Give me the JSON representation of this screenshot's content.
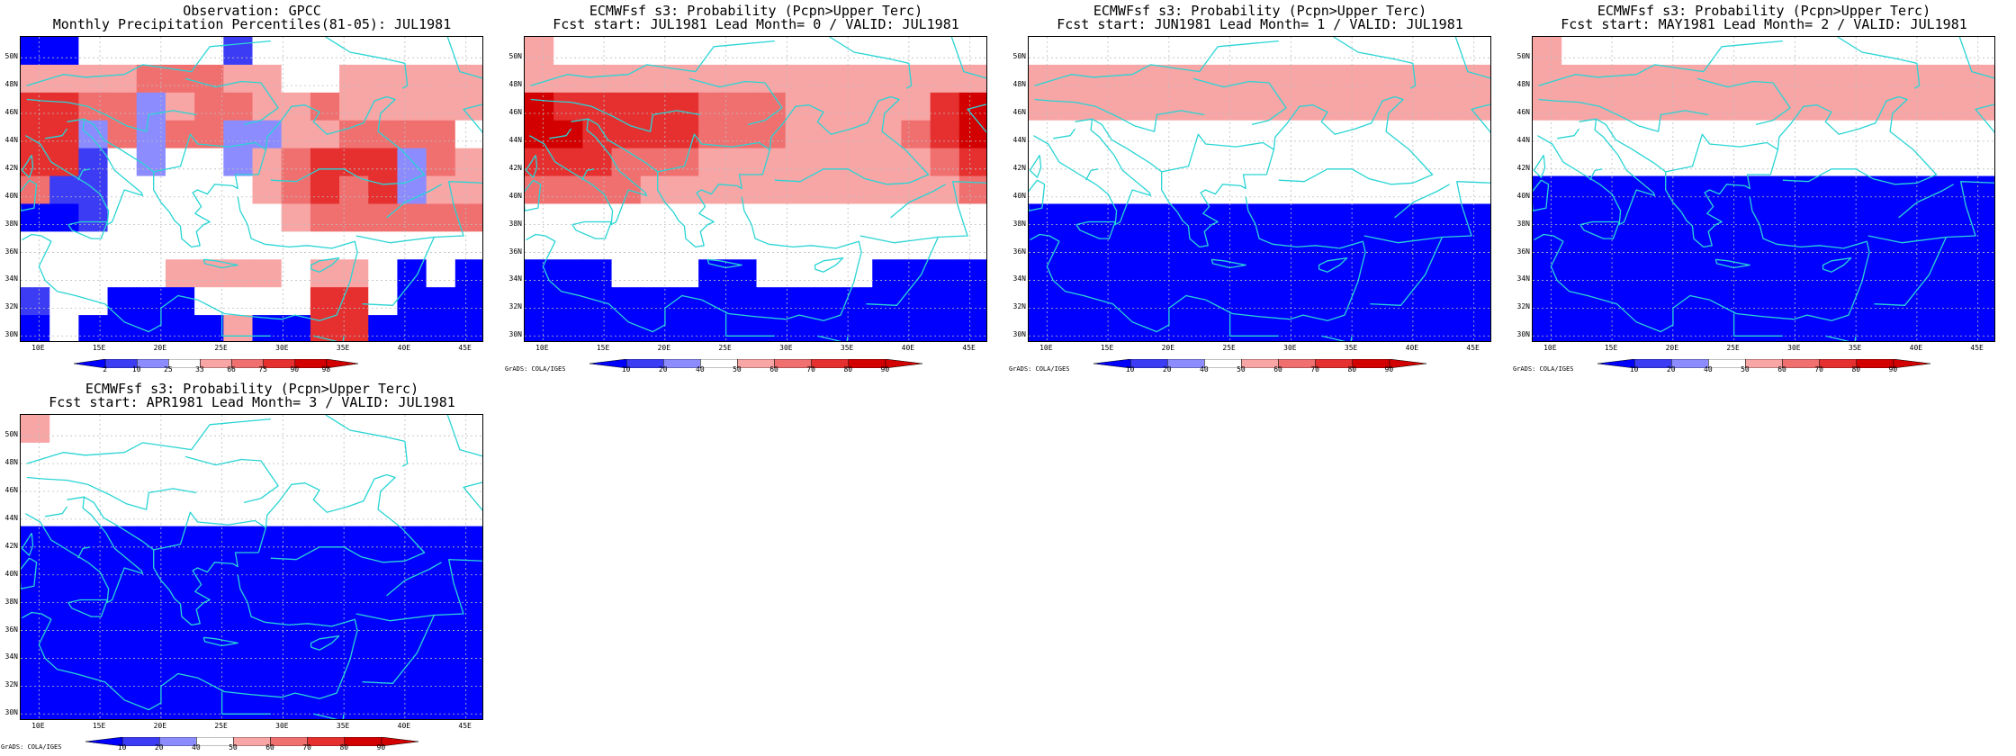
{
  "lat_labels": [
    "30N",
    "32N",
    "34N",
    "36N",
    "38N",
    "40N",
    "42N",
    "44N",
    "46N",
    "48N",
    "50N"
  ],
  "lon_labels": [
    "10E",
    "15E",
    "20E",
    "25E",
    "30E",
    "35E",
    "40E",
    "45E"
  ],
  "grads_credit": "GrADS: COLA/IGES",
  "colors": {
    "coast": "#2ad4d4",
    "grid": "#bdbdbd",
    "classes": [
      "#0000ff",
      "#3c3cf5",
      "#8c8cff",
      "#ffffff",
      "#f8a5a5",
      "#f07070",
      "#e63030",
      "#d20000"
    ]
  },
  "obs_colorbar": {
    "ticks": [
      "2",
      "10",
      "25",
      "33",
      "66",
      "75",
      "90",
      "98"
    ],
    "colors": [
      "#0000ff",
      "#3c3cf5",
      "#8c8cff",
      "#ffffff",
      "#f8a5a5",
      "#f07070",
      "#e63030",
      "#d20000"
    ]
  },
  "prob_colorbar": {
    "ticks": [
      "10",
      "20",
      "40",
      "50",
      "60",
      "70",
      "80",
      "90"
    ],
    "colors": [
      "#0000ff",
      "#3c3cf5",
      "#8c8cff",
      "#ffffff",
      "#f8a5a5",
      "#f07070",
      "#e63030",
      "#d20000"
    ]
  },
  "panels": [
    {
      "title1": "Observation: GPCC",
      "title2": "Monthly Precipitation Percentiles(81-05): JUL1981",
      "show_credit": false,
      "colorbar": "obs",
      "grid_values": [
        [
          0,
          0,
          3,
          3,
          3,
          3,
          3,
          1,
          3,
          3,
          3,
          3,
          3,
          3,
          3,
          3
        ],
        [
          4,
          4,
          4,
          4,
          5,
          5,
          5,
          4,
          4,
          3,
          3,
          4,
          4,
          4,
          4,
          4
        ],
        [
          6,
          6,
          5,
          5,
          2,
          4,
          5,
          5,
          4,
          4,
          5,
          4,
          4,
          4,
          4,
          4
        ],
        [
          6,
          6,
          2,
          5,
          2,
          5,
          5,
          2,
          2,
          4,
          4,
          5,
          5,
          5,
          5,
          3
        ],
        [
          6,
          6,
          1,
          3,
          2,
          3,
          3,
          2,
          4,
          5,
          6,
          6,
          6,
          2,
          5,
          4
        ],
        [
          5,
          1,
          1,
          3,
          3,
          3,
          3,
          3,
          4,
          5,
          6,
          5,
          6,
          2,
          4,
          4
        ],
        [
          0,
          0,
          1,
          3,
          3,
          3,
          3,
          3,
          3,
          4,
          5,
          5,
          5,
          5,
          5,
          5
        ],
        [
          3,
          3,
          3,
          3,
          3,
          3,
          3,
          3,
          3,
          3,
          3,
          3,
          3,
          3,
          3,
          3
        ],
        [
          3,
          3,
          3,
          3,
          3,
          4,
          4,
          4,
          4,
          3,
          4,
          4,
          3,
          0,
          3,
          0
        ],
        [
          1,
          3,
          3,
          0,
          0,
          0,
          3,
          3,
          3,
          3,
          6,
          6,
          3,
          0,
          0,
          0
        ],
        [
          0,
          3,
          0,
          0,
          0,
          0,
          0,
          4,
          0,
          0,
          6,
          6,
          0,
          0,
          0,
          0
        ]
      ]
    },
    {
      "title1": "ECMWFsf s3: Probability (Pcpn>Upper Terc)",
      "title2": "Fcst start: JUL1981   Lead Month= 0 / VALID: JUL1981",
      "show_credit": true,
      "colorbar": "prob",
      "grid_values": [
        [
          4,
          3,
          3,
          3,
          3,
          3,
          3,
          3,
          3,
          3,
          3,
          3,
          3,
          3,
          3,
          3
        ],
        [
          4,
          4,
          4,
          4,
          4,
          4,
          4,
          4,
          4,
          4,
          4,
          4,
          4,
          4,
          4,
          4
        ],
        [
          7,
          6,
          6,
          6,
          6,
          6,
          5,
          5,
          5,
          4,
          4,
          4,
          4,
          4,
          6,
          7
        ],
        [
          7,
          7,
          6,
          6,
          6,
          6,
          5,
          5,
          5,
          4,
          4,
          4,
          4,
          5,
          6,
          7
        ],
        [
          6,
          6,
          6,
          5,
          5,
          5,
          4,
          4,
          4,
          4,
          4,
          4,
          4,
          4,
          5,
          6
        ],
        [
          5,
          5,
          5,
          5,
          4,
          4,
          4,
          4,
          4,
          4,
          4,
          4,
          4,
          4,
          4,
          5
        ],
        [
          3,
          3,
          3,
          3,
          3,
          3,
          3,
          3,
          3,
          3,
          3,
          3,
          3,
          3,
          3,
          3
        ],
        [
          3,
          3,
          3,
          3,
          3,
          3,
          3,
          3,
          3,
          3,
          3,
          3,
          3,
          3,
          3,
          3
        ],
        [
          0,
          0,
          0,
          3,
          3,
          3,
          0,
          0,
          3,
          3,
          3,
          3,
          0,
          0,
          0,
          0
        ],
        [
          0,
          0,
          0,
          0,
          0,
          0,
          0,
          0,
          0,
          0,
          0,
          0,
          0,
          0,
          0,
          0
        ],
        [
          0,
          0,
          0,
          0,
          0,
          0,
          0,
          0,
          0,
          0,
          0,
          0,
          0,
          0,
          0,
          0
        ]
      ]
    },
    {
      "title1": "ECMWFsf s3: Probability (Pcpn>Upper Terc)",
      "title2": "Fcst start: JUN1981   Lead Month= 1 / VALID: JUL1981",
      "show_credit": true,
      "colorbar": "prob",
      "grid_values": [
        [
          3,
          3,
          3,
          3,
          3,
          3,
          3,
          3,
          3,
          3,
          3,
          3,
          3,
          3,
          3,
          3
        ],
        [
          4,
          4,
          4,
          4,
          4,
          4,
          4,
          4,
          4,
          4,
          4,
          4,
          4,
          4,
          4,
          4
        ],
        [
          4,
          4,
          4,
          4,
          4,
          4,
          4,
          4,
          4,
          4,
          4,
          4,
          4,
          4,
          4,
          4
        ],
        [
          3,
          3,
          3,
          3,
          3,
          3,
          3,
          3,
          3,
          3,
          3,
          3,
          3,
          3,
          3,
          3
        ],
        [
          3,
          3,
          3,
          3,
          3,
          3,
          3,
          3,
          3,
          3,
          3,
          3,
          3,
          3,
          3,
          3
        ],
        [
          3,
          3,
          3,
          3,
          3,
          3,
          3,
          3,
          3,
          3,
          3,
          3,
          3,
          3,
          3,
          3
        ],
        [
          0,
          0,
          0,
          0,
          0,
          0,
          0,
          0,
          0,
          0,
          0,
          0,
          0,
          0,
          0,
          0
        ],
        [
          0,
          0,
          0,
          0,
          0,
          0,
          0,
          0,
          0,
          0,
          0,
          0,
          0,
          0,
          0,
          0
        ],
        [
          0,
          0,
          0,
          0,
          0,
          0,
          0,
          0,
          0,
          0,
          0,
          0,
          0,
          0,
          0,
          0
        ],
        [
          0,
          0,
          0,
          0,
          0,
          0,
          0,
          0,
          0,
          0,
          0,
          0,
          0,
          0,
          0,
          0
        ],
        [
          0,
          0,
          0,
          0,
          0,
          0,
          0,
          0,
          0,
          0,
          0,
          0,
          0,
          0,
          0,
          0
        ]
      ]
    },
    {
      "title1": "ECMWFsf s3: Probability (Pcpn>Upper Terc)",
      "title2": "Fcst start: MAY1981   Lead Month= 2 / VALID: JUL1981",
      "show_credit": true,
      "colorbar": "prob",
      "grid_values": [
        [
          4,
          3,
          3,
          3,
          3,
          3,
          3,
          3,
          3,
          3,
          3,
          3,
          3,
          3,
          3,
          3
        ],
        [
          4,
          4,
          4,
          4,
          4,
          4,
          4,
          4,
          4,
          4,
          4,
          4,
          4,
          4,
          4,
          4
        ],
        [
          4,
          4,
          4,
          4,
          4,
          4,
          4,
          4,
          4,
          4,
          4,
          4,
          4,
          4,
          4,
          4
        ],
        [
          3,
          3,
          3,
          3,
          3,
          3,
          3,
          3,
          3,
          3,
          3,
          3,
          3,
          3,
          3,
          3
        ],
        [
          3,
          3,
          3,
          3,
          3,
          3,
          3,
          3,
          3,
          3,
          3,
          3,
          3,
          3,
          3,
          3
        ],
        [
          0,
          0,
          0,
          0,
          0,
          0,
          0,
          0,
          0,
          0,
          0,
          0,
          0,
          0,
          0,
          0
        ],
        [
          0,
          0,
          0,
          0,
          0,
          0,
          0,
          0,
          0,
          0,
          0,
          0,
          0,
          0,
          0,
          0
        ],
        [
          0,
          0,
          0,
          0,
          0,
          0,
          0,
          0,
          0,
          0,
          0,
          0,
          0,
          0,
          0,
          0
        ],
        [
          0,
          0,
          0,
          0,
          0,
          0,
          0,
          0,
          0,
          0,
          0,
          0,
          0,
          0,
          0,
          0
        ],
        [
          0,
          0,
          0,
          0,
          0,
          0,
          0,
          0,
          0,
          0,
          0,
          0,
          0,
          0,
          0,
          0
        ],
        [
          0,
          0,
          0,
          0,
          0,
          0,
          0,
          0,
          0,
          0,
          0,
          0,
          0,
          0,
          0,
          0
        ]
      ]
    },
    {
      "title1": "ECMWFsf s3: Probability (Pcpn>Upper Terc)",
      "title2": "Fcst start: APR1981   Lead Month= 3 / VALID: JUL1981",
      "show_credit": true,
      "colorbar": "prob",
      "grid_values": [
        [
          4,
          3,
          3,
          3,
          3,
          3,
          3,
          3,
          3,
          3,
          3,
          3,
          3,
          3,
          3,
          3
        ],
        [
          3,
          3,
          3,
          3,
          3,
          3,
          3,
          3,
          3,
          3,
          3,
          3,
          3,
          3,
          3,
          3
        ],
        [
          3,
          3,
          3,
          3,
          3,
          3,
          3,
          3,
          3,
          3,
          3,
          3,
          3,
          3,
          3,
          3
        ],
        [
          3,
          3,
          3,
          3,
          3,
          3,
          3,
          3,
          3,
          3,
          3,
          3,
          3,
          3,
          3,
          3
        ],
        [
          0,
          0,
          0,
          0,
          0,
          0,
          0,
          0,
          0,
          0,
          0,
          0,
          0,
          0,
          0,
          0
        ],
        [
          0,
          0,
          0,
          0,
          0,
          0,
          0,
          0,
          0,
          0,
          0,
          0,
          0,
          0,
          0,
          0
        ],
        [
          0,
          0,
          0,
          0,
          0,
          0,
          0,
          0,
          0,
          0,
          0,
          0,
          0,
          0,
          0,
          0
        ],
        [
          0,
          0,
          0,
          0,
          0,
          0,
          0,
          0,
          0,
          0,
          0,
          0,
          0,
          0,
          0,
          0
        ],
        [
          0,
          0,
          0,
          0,
          0,
          0,
          0,
          0,
          0,
          0,
          0,
          0,
          0,
          0,
          0,
          0
        ],
        [
          0,
          0,
          0,
          0,
          0,
          0,
          0,
          0,
          0,
          0,
          0,
          0,
          0,
          0,
          0,
          0
        ],
        [
          0,
          0,
          0,
          0,
          0,
          0,
          0,
          0,
          0,
          0,
          0,
          0,
          0,
          0,
          0,
          0
        ]
      ]
    }
  ]
}
